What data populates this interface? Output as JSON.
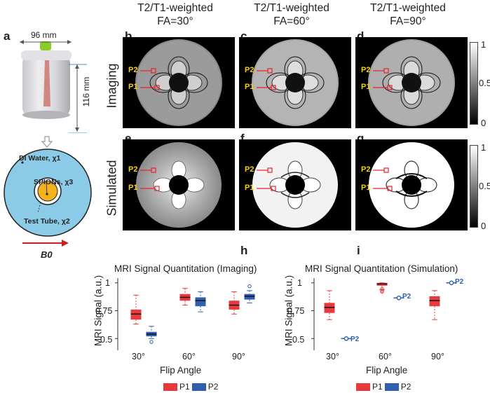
{
  "panels": {
    "a": "a",
    "b": "b",
    "c": "c",
    "d": "d",
    "e": "e",
    "f": "f",
    "g": "g",
    "h": "h",
    "i": "i"
  },
  "phantom": {
    "width_label": "96 mm",
    "height_label": "116 mm",
    "water_label": "DI Water, χ1",
    "spions_label": "SPIONs, χ3",
    "tube_label": "Test Tube, χ2",
    "field_label": "B0"
  },
  "columns": [
    {
      "line1": "T2/T1-weighted",
      "line2": "FA=30°"
    },
    {
      "line1": "T2/T1-weighted",
      "line2": "FA=60°"
    },
    {
      "line1": "T2/T1-weighted",
      "line2": "FA=90°"
    }
  ],
  "rows": {
    "imaging": "Imaging",
    "simulated": "Simulated"
  },
  "point_labels": {
    "p1": "P1",
    "p2": "P2"
  },
  "colorbar": {
    "ticks": [
      "1",
      "0.5",
      "0"
    ]
  },
  "colors": {
    "p1": "#e8393c",
    "p2": "#2f5fad",
    "marker": "#e8202a",
    "phantom_fill": "#8ccbe8",
    "spion_fill": "#f4b21c",
    "tag": "#f5d400"
  },
  "chart_data": [
    {
      "type": "box",
      "title": "MRI Signal Quantitation (Imaging)",
      "xlabel": "Flip Angle",
      "ylabel": "MRI Signal (a.u.)",
      "categories": [
        "30°",
        "60°",
        "90°"
      ],
      "yticks": [
        "1",
        "0.75",
        "0.5"
      ],
      "ylim": [
        0.42,
        1.03
      ],
      "series": [
        {
          "name": "P1",
          "boxes": [
            {
              "min": 0.63,
              "q1": 0.67,
              "median": 0.72,
              "q3": 0.76,
              "max": 0.89,
              "outliers": []
            },
            {
              "min": 0.8,
              "q1": 0.84,
              "median": 0.87,
              "q3": 0.9,
              "max": 0.95,
              "outliers": []
            },
            {
              "min": 0.72,
              "q1": 0.76,
              "median": 0.8,
              "q3": 0.84,
              "max": 0.92,
              "outliers": []
            }
          ]
        },
        {
          "name": "P2",
          "boxes": [
            {
              "min": 0.5,
              "q1": 0.52,
              "median": 0.54,
              "q3": 0.56,
              "max": 0.61,
              "outliers": [
                0.47
              ]
            },
            {
              "min": 0.74,
              "q1": 0.79,
              "median": 0.84,
              "q3": 0.87,
              "max": 0.92,
              "outliers": []
            },
            {
              "min": 0.82,
              "q1": 0.85,
              "median": 0.88,
              "q3": 0.9,
              "max": 0.93,
              "outliers": [
                0.97
              ]
            }
          ]
        }
      ]
    },
    {
      "type": "box",
      "title": "MRI Signal Quantitation (Simulation)",
      "xlabel": "Flip Angle",
      "ylabel": "MRI Signal (a.u.)",
      "categories": [
        "30°",
        "60°",
        "90°"
      ],
      "yticks": [
        "1",
        "0.75",
        "0.5"
      ],
      "ylim": [
        0.42,
        1.03
      ],
      "annotation": "P2",
      "series": [
        {
          "name": "P1",
          "boxes": [
            {
              "min": 0.67,
              "q1": 0.73,
              "median": 0.78,
              "q3": 0.82,
              "max": 0.93,
              "outliers": []
            },
            {
              "min": 0.94,
              "q1": 0.975,
              "median": 0.99,
              "q3": 1.0,
              "max": 1.0,
              "outliers": [
                0.92,
                0.93,
                0.945
              ]
            },
            {
              "min": 0.67,
              "q1": 0.79,
              "median": 0.84,
              "q3": 0.88,
              "max": 0.93,
              "outliers": []
            }
          ]
        },
        {
          "name": "P2",
          "boxes": [
            {
              "min": 0.5,
              "q1": 0.5,
              "median": 0.5,
              "q3": 0.5,
              "max": 0.5,
              "outliers": [
                0.5
              ]
            },
            {
              "min": 0.865,
              "q1": 0.865,
              "median": 0.865,
              "q3": 0.865,
              "max": 0.865,
              "outliers": [
                0.865
              ]
            },
            {
              "min": 1.0,
              "q1": 1.0,
              "median": 1.0,
              "q3": 1.0,
              "max": 1.0,
              "outliers": [
                1.0
              ]
            }
          ]
        }
      ]
    }
  ]
}
